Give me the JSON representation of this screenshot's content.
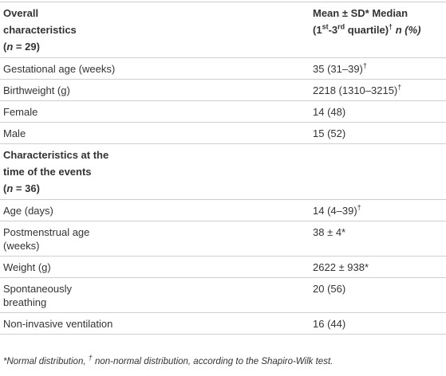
{
  "table": {
    "rows": [
      {
        "bold": true,
        "cells": [
          [
            [
              "Overall"
            ],
            [
              "characteristics"
            ],
            [
              "(",
              {
                "i": "n"
              },
              " = 29)"
            ]
          ],
          [
            [
              "Mean ± SD* Median"
            ],
            [
              "(1",
              {
                "sup": "st"
              },
              "-3",
              {
                "sup": "rd"
              },
              " quartile)",
              {
                "sup": "†"
              },
              " ",
              {
                "i": "n (%)"
              }
            ]
          ]
        ]
      },
      {
        "cells": [
          [
            [
              "Gestational age (weeks)"
            ]
          ],
          [
            [
              "35 (31–39)",
              {
                "sup": "†"
              }
            ]
          ]
        ]
      },
      {
        "cells": [
          [
            [
              "Birthweight (g)"
            ]
          ],
          [
            [
              "2218 (1310–3215)",
              {
                "sup": "†"
              }
            ]
          ]
        ]
      },
      {
        "cells": [
          [
            [
              "Female"
            ]
          ],
          [
            [
              "14 (48)"
            ]
          ]
        ]
      },
      {
        "cells": [
          [
            [
              "Male"
            ]
          ],
          [
            [
              "15 (52)"
            ]
          ]
        ]
      },
      {
        "bold": true,
        "cells": [
          [
            [
              "Characteristics at the"
            ],
            [
              "time of the events"
            ],
            [
              "(",
              {
                "i": "n"
              },
              " = 36)"
            ]
          ],
          []
        ]
      },
      {
        "cells": [
          [
            [
              "Age (days)"
            ]
          ],
          [
            [
              "14 (4–39)",
              {
                "sup": "†"
              }
            ]
          ]
        ]
      },
      {
        "cells": [
          [
            [
              "Postmenstrual age"
            ],
            [
              "(weeks)"
            ]
          ],
          [
            [
              "38 ± 4*"
            ]
          ]
        ]
      },
      {
        "cells": [
          [
            [
              "Weight (g)"
            ]
          ],
          [
            [
              "2622 ± 938*"
            ]
          ]
        ]
      },
      {
        "cells": [
          [
            [
              "Spontaneously"
            ],
            [
              "breathing"
            ]
          ],
          [
            [
              "20 (56)"
            ]
          ]
        ]
      },
      {
        "cells": [
          [
            [
              "Non-invasive ventilation"
            ]
          ],
          [
            [
              "16 (44)"
            ]
          ]
        ]
      }
    ],
    "footnote": [
      [
        {
          "i": "*Normal distribution, "
        },
        {
          "sup": "†"
        },
        {
          "i": " non-normal distribution, according to the Shapiro-Wilk test."
        }
      ]
    ]
  }
}
